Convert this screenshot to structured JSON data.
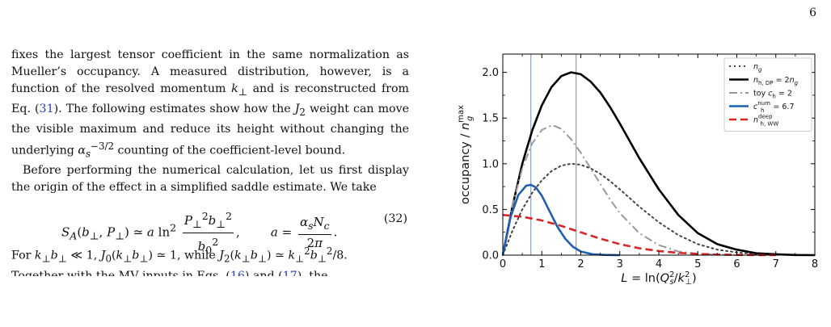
{
  "page": {
    "number": "6"
  },
  "text": {
    "para1": "fixes the largest tensor coefficient in the same normalization as Mueller's occupancy. A measured distribution, however, is a function of the resolved momentum k⊥ and is reconstructed from Eq. (31). The following estimates show how the J₂ weight can move the visible maximum and reduce its height without changing the underlying αs^−3/2 counting of the coefficient-level bound.",
    "para2": "Before performing the numerical calculation, let us first display the origin of the effect in a simplified saddle estimate. We take",
    "equation": "S_A(b⊥, P⊥) ≃ a ln² (P⊥² b⊥² / b0²),  a = αs Nc / (2π).",
    "equation_number": "(32)",
    "para3": "For k⊥b⊥ ≪ 1, J0(k⊥b⊥) ≃ 1, while J2(k⊥b⊥) ≃ k⊥² b⊥²/8.",
    "para4_partial": "Together with the MV inputs in Eqs. (16) and (17), the"
  },
  "chart_data": {
    "type": "line",
    "xlabel": "L = ln(Q_s^2/k_⊥^2)",
    "ylabel": "occupancy / n_g^max",
    "xlim": [
      0,
      8
    ],
    "ylim": [
      0,
      2.2
    ],
    "x_ticks": [
      0,
      1,
      2,
      3,
      4,
      5,
      6,
      7,
      8
    ],
    "y_ticks": [
      0.0,
      0.5,
      1.0,
      1.5,
      2.0
    ],
    "y_tick_labels": [
      "0.0",
      "0.5",
      "1.0",
      "1.5",
      "2.0"
    ],
    "grid": false,
    "legend_position": "top-right",
    "vlines": [
      {
        "x": 0.72,
        "color": "#6a8fbd"
      },
      {
        "x": 1.88,
        "color": "#888888"
      }
    ],
    "series": [
      {
        "name": "n_g",
        "color": "#444444",
        "style": "dotted",
        "width": 2,
        "x": [
          0,
          0.25,
          0.5,
          0.75,
          1.0,
          1.25,
          1.5,
          1.75,
          2.0,
          2.25,
          2.5,
          2.75,
          3.0,
          3.5,
          4.0,
          4.5,
          5.0,
          5.5,
          6.0,
          6.5,
          7.0,
          7.5,
          8.0
        ],
        "y": [
          0,
          0.27,
          0.5,
          0.68,
          0.82,
          0.92,
          0.98,
          1.0,
          0.99,
          0.95,
          0.89,
          0.81,
          0.72,
          0.53,
          0.36,
          0.22,
          0.12,
          0.06,
          0.03,
          0.01,
          0.005,
          0.001,
          0.0
        ]
      },
      {
        "name": "n_h,DP = 2n_g",
        "color": "#000000",
        "style": "solid",
        "width": 2.6,
        "x": [
          0,
          0.25,
          0.5,
          0.75,
          1.0,
          1.25,
          1.5,
          1.75,
          2.0,
          2.25,
          2.5,
          2.75,
          3.0,
          3.5,
          4.0,
          4.5,
          5.0,
          5.5,
          6.0,
          6.5,
          7.0,
          7.5,
          8.0
        ],
        "y": [
          0,
          0.54,
          1.0,
          1.36,
          1.64,
          1.84,
          1.96,
          2.0,
          1.98,
          1.9,
          1.78,
          1.62,
          1.44,
          1.06,
          0.72,
          0.44,
          0.24,
          0.12,
          0.06,
          0.02,
          0.01,
          0.002,
          0.0
        ]
      },
      {
        "name": "toy c_h = 2",
        "color": "#999999",
        "style": "dashdot",
        "width": 2,
        "x": [
          0,
          0.25,
          0.5,
          0.75,
          1.0,
          1.25,
          1.35,
          1.5,
          1.75,
          2.0,
          2.25,
          2.5,
          2.75,
          3.0,
          3.5,
          4.0,
          4.5,
          5.0,
          5.5,
          6.0
        ],
        "y": [
          0,
          0.55,
          0.95,
          1.22,
          1.37,
          1.42,
          1.41,
          1.38,
          1.27,
          1.12,
          0.95,
          0.78,
          0.61,
          0.46,
          0.24,
          0.11,
          0.04,
          0.015,
          0.005,
          0.0
        ]
      },
      {
        "name": "c_h^num = 6.7",
        "color": "#1f5fb0",
        "style": "solid",
        "width": 2.6,
        "x": [
          0,
          0.2,
          0.4,
          0.6,
          0.72,
          0.85,
          1.0,
          1.2,
          1.4,
          1.6,
          1.8,
          2.0,
          2.3,
          2.6,
          3.0
        ],
        "y": [
          0,
          0.42,
          0.66,
          0.76,
          0.77,
          0.74,
          0.65,
          0.48,
          0.31,
          0.18,
          0.09,
          0.04,
          0.01,
          0.003,
          0.0
        ]
      },
      {
        "name": "n_h,WW^deep",
        "color": "#d62728",
        "style": "dashed",
        "width": 2.6,
        "x": [
          0,
          0.5,
          1.0,
          1.5,
          2.0,
          2.5,
          3.0,
          3.5,
          4.0,
          4.5,
          5.0,
          5.5,
          6.0,
          6.5,
          7.0
        ],
        "y": [
          0.44,
          0.42,
          0.38,
          0.32,
          0.25,
          0.18,
          0.12,
          0.075,
          0.045,
          0.025,
          0.013,
          0.006,
          0.003,
          0.001,
          0.0
        ]
      }
    ]
  }
}
